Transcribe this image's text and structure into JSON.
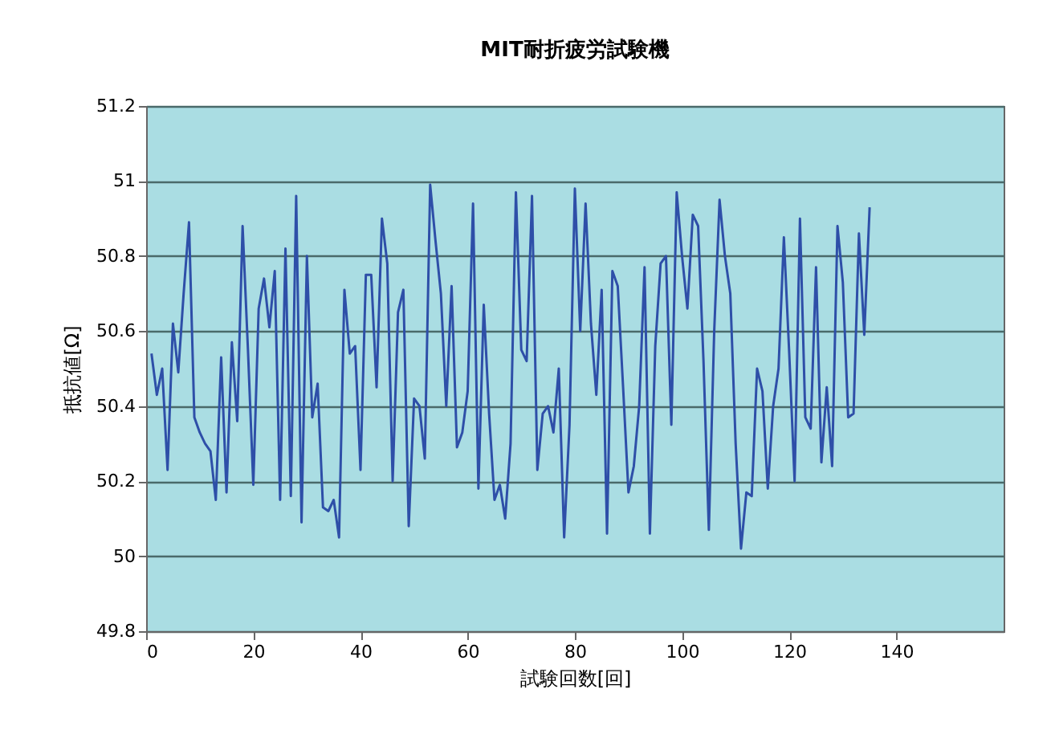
{
  "chart_data": {
    "type": "line",
    "title": "MIT耐折疲労試験機",
    "xlabel": "試験回数[回]",
    "ylabel": "抵抗値[Ω]",
    "x": [
      1,
      2,
      3,
      4,
      5,
      6,
      7,
      8,
      9,
      10,
      11,
      12,
      13,
      14,
      15,
      16,
      17,
      18,
      19,
      20,
      21,
      22,
      23,
      24,
      25,
      26,
      27,
      28,
      29,
      30,
      31,
      32,
      33,
      34,
      35,
      36,
      37,
      38,
      39,
      40,
      41,
      42,
      43,
      44,
      45,
      46,
      47,
      48,
      49,
      50,
      51,
      52,
      53,
      54,
      55,
      56,
      57,
      58,
      59,
      60,
      61,
      62,
      63,
      64,
      65,
      66,
      67,
      68,
      69,
      70,
      71,
      72,
      73,
      74,
      75,
      76,
      77,
      78,
      79,
      80,
      81,
      82,
      83,
      84,
      85,
      86,
      87,
      88,
      89,
      90,
      91,
      92,
      93,
      94,
      95,
      96,
      97,
      98,
      99,
      100,
      101,
      102,
      103,
      104,
      105,
      106,
      107,
      108,
      109,
      110,
      111,
      112,
      113,
      114,
      115,
      116,
      117,
      118,
      119,
      120,
      121,
      122,
      123,
      124,
      125,
      126,
      127,
      128,
      129,
      130,
      131,
      132,
      133,
      134,
      135
    ],
    "series": [
      {
        "color": "#2e4fa8",
        "values": [
          50.54,
          50.43,
          50.5,
          50.23,
          50.62,
          50.49,
          50.7,
          50.89,
          50.37,
          50.33,
          50.3,
          50.28,
          50.15,
          50.53,
          50.17,
          50.57,
          50.36,
          50.88,
          50.55,
          50.19,
          50.66,
          50.74,
          50.61,
          50.76,
          50.15,
          50.82,
          50.16,
          50.96,
          50.09,
          50.8,
          50.37,
          50.46,
          50.13,
          50.12,
          50.15,
          50.05,
          50.71,
          50.54,
          50.56,
          50.23,
          50.75,
          50.75,
          50.45,
          50.9,
          50.78,
          50.2,
          50.65,
          50.71,
          50.08,
          50.42,
          50.4,
          50.26,
          50.99,
          50.84,
          50.7,
          50.4,
          50.72,
          50.29,
          50.33,
          50.44,
          50.94,
          50.18,
          50.67,
          50.38,
          50.15,
          50.19,
          50.1,
          50.3,
          50.97,
          50.55,
          50.52,
          50.96,
          50.23,
          50.38,
          50.4,
          50.33,
          50.5,
          50.05,
          50.35,
          50.98,
          50.6,
          50.94,
          50.62,
          50.43,
          50.71,
          50.06,
          50.76,
          50.72,
          50.45,
          50.17,
          50.24,
          50.4,
          50.77,
          50.06,
          50.56,
          50.78,
          50.8,
          50.35,
          50.97,
          50.8,
          50.66,
          50.91,
          50.88,
          50.52,
          50.07,
          50.6,
          50.95,
          50.8,
          50.7,
          50.3,
          50.02,
          50.17,
          50.16,
          50.5,
          50.44,
          50.18,
          50.4,
          50.5,
          50.85,
          50.54,
          50.2,
          50.9,
          50.37,
          50.34,
          50.77,
          50.25,
          50.45,
          50.24,
          50.88,
          50.73,
          50.37,
          50.38,
          50.86,
          50.59,
          50.93
        ]
      }
    ],
    "xlim": [
      0,
      160
    ],
    "xticks": [
      0,
      20,
      40,
      60,
      80,
      100,
      120,
      140
    ],
    "ylim": [
      49.8,
      51.2
    ],
    "yticks": [
      49.8,
      50,
      50.2,
      50.4,
      50.6,
      50.8,
      51,
      51.2
    ],
    "grid": "y",
    "marker": "none",
    "line_style": "solid"
  }
}
